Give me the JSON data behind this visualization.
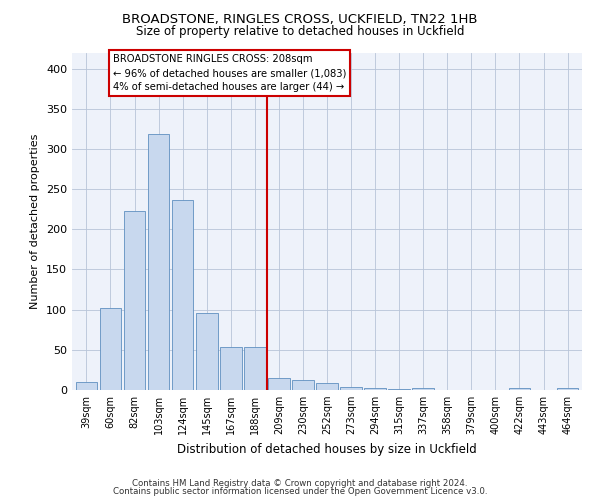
{
  "title1": "BROADSTONE, RINGLES CROSS, UCKFIELD, TN22 1HB",
  "title2": "Size of property relative to detached houses in Uckfield",
  "xlabel": "Distribution of detached houses by size in Uckfield",
  "ylabel": "Number of detached properties",
  "categories": [
    "39sqm",
    "60sqm",
    "82sqm",
    "103sqm",
    "124sqm",
    "145sqm",
    "167sqm",
    "188sqm",
    "209sqm",
    "230sqm",
    "252sqm",
    "273sqm",
    "294sqm",
    "315sqm",
    "337sqm",
    "358sqm",
    "379sqm",
    "400sqm",
    "422sqm",
    "443sqm",
    "464sqm"
  ],
  "values": [
    10,
    102,
    223,
    319,
    236,
    96,
    54,
    54,
    15,
    13,
    9,
    4,
    3,
    1,
    3,
    0,
    0,
    0,
    2,
    0,
    3
  ],
  "bar_color": "#c8d8ee",
  "bar_edge_color": "#6090c0",
  "vline_color": "#cc0000",
  "annotation_text": "BROADSTONE RINGLES CROSS: 208sqm\n← 96% of detached houses are smaller (1,083)\n4% of semi-detached houses are larger (44) →",
  "annotation_box_facecolor": "#ffffff",
  "annotation_box_edgecolor": "#cc0000",
  "ylim": [
    0,
    420
  ],
  "yticks": [
    0,
    50,
    100,
    150,
    200,
    250,
    300,
    350,
    400
  ],
  "background_color": "#eef2fa",
  "grid_color": "#b8c4d8",
  "footer1": "Contains HM Land Registry data © Crown copyright and database right 2024.",
  "footer2": "Contains public sector information licensed under the Open Government Licence v3.0."
}
